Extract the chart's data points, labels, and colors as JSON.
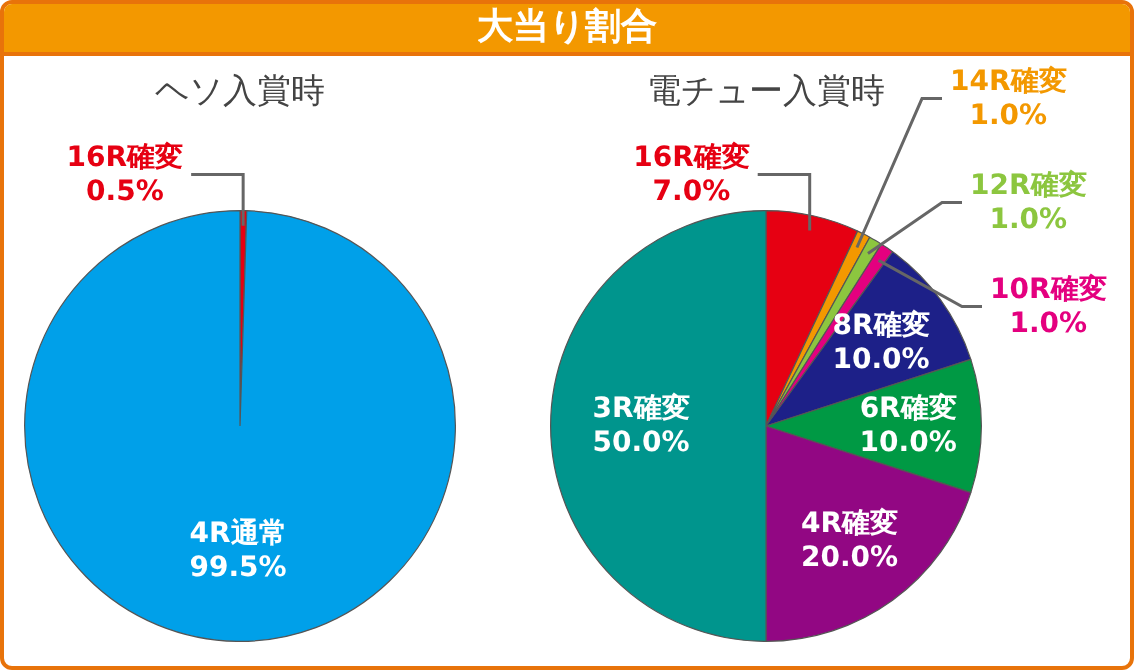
{
  "chart_data": [
    {
      "type": "other",
      "title": "大当り割合"
    },
    {
      "type": "pie",
      "title": "ヘソ入賞時",
      "categories": [
        "16R確変",
        "4R通常"
      ],
      "values": [
        0.5,
        99.5
      ],
      "colors": [
        "#e60012",
        "#00a0e9"
      ],
      "value_labels": [
        "0.5%",
        "99.5%"
      ]
    },
    {
      "type": "pie",
      "title": "電チュー入賞時",
      "categories": [
        "16R確変",
        "14R確変",
        "12R確変",
        "10R確変",
        "8R確変",
        "6R確変",
        "4R確変",
        "3R確変"
      ],
      "values": [
        7,
        1,
        1,
        1,
        10,
        10,
        20,
        50
      ],
      "colors": [
        "#e60012",
        "#f39800",
        "#8cc63f",
        "#e4007f",
        "#1d2088",
        "#009944",
        "#920783",
        "#00958d"
      ],
      "value_labels": [
        "7.0%",
        "1.0%",
        "1.0%",
        "1.0%",
        "10.0%",
        "10.0%",
        "20.0%",
        "50.0%"
      ]
    }
  ]
}
